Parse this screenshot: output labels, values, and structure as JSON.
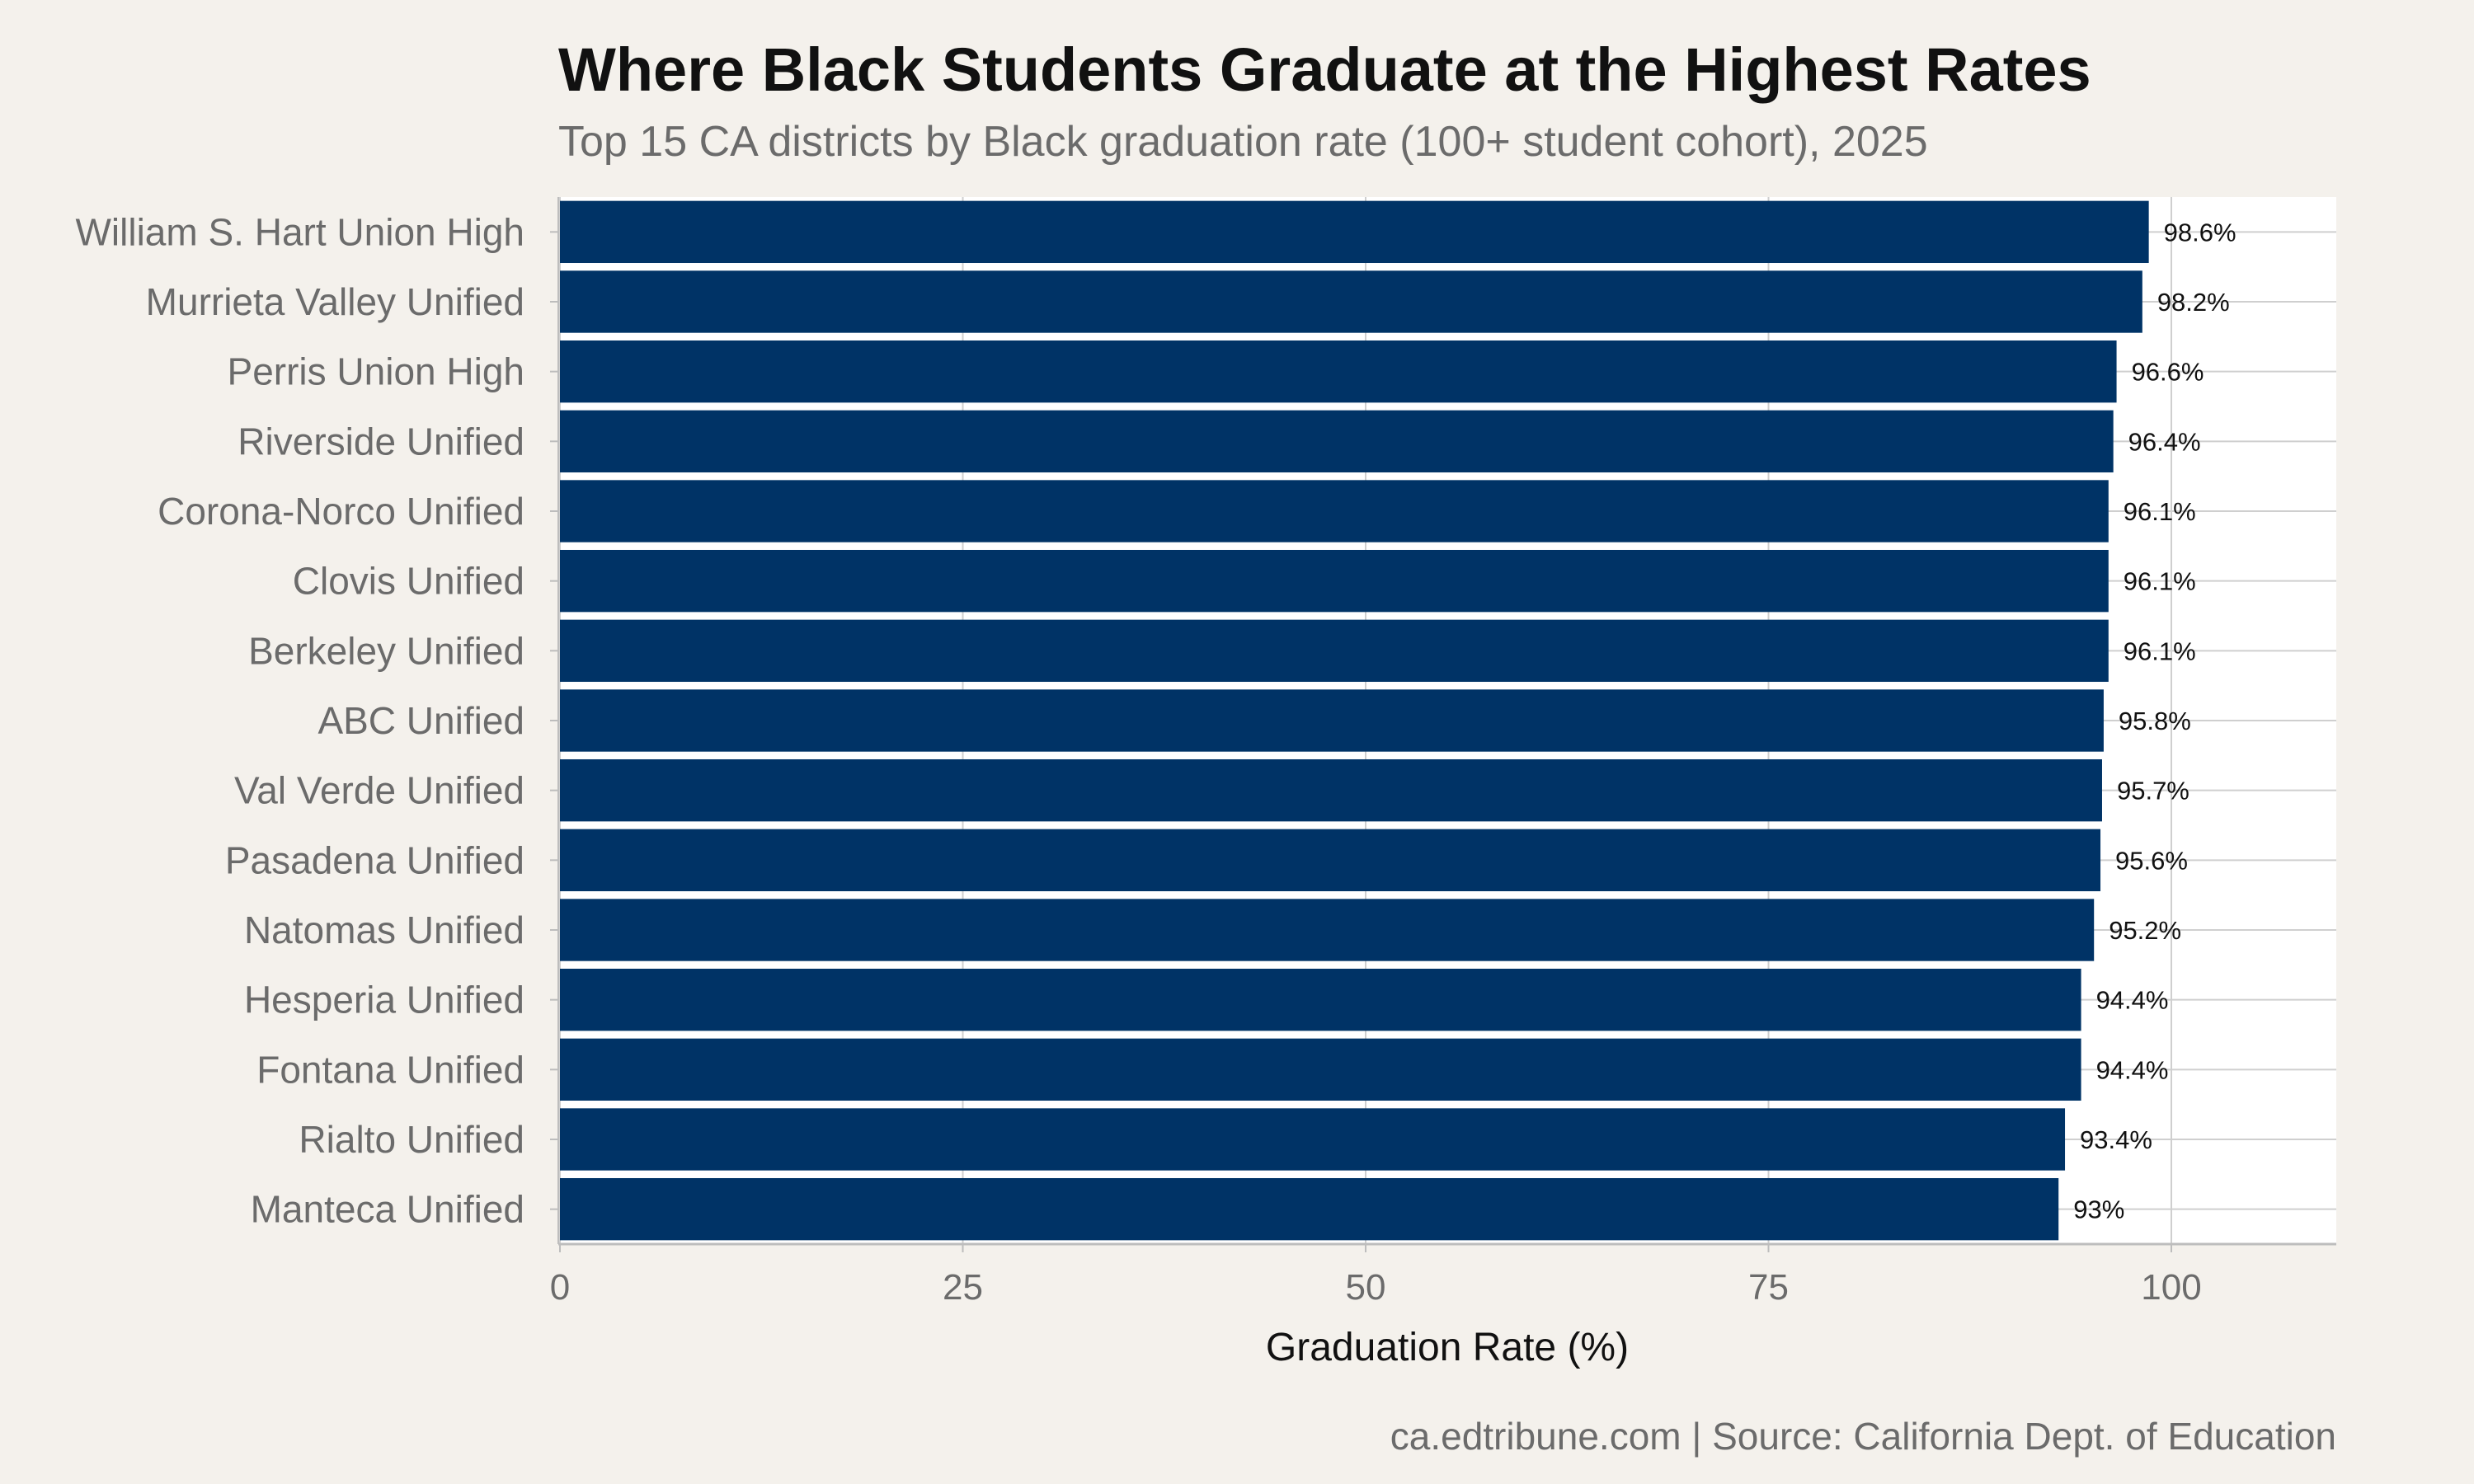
{
  "chart_data": {
    "type": "bar",
    "orientation": "horizontal",
    "title": "Where Black Students Graduate at the Highest Rates",
    "subtitle": "Top 15 CA districts by Black graduation rate (100+ student cohort), 2025",
    "xlabel": "Graduation Rate (%)",
    "ylabel": "",
    "caption": "ca.edtribune.com | Source: California Dept. of Education",
    "xlim": [
      0,
      110
    ],
    "xticks": [
      0,
      25,
      50,
      75,
      100
    ],
    "grid": true,
    "bar_color": "#003366",
    "categories": [
      "William S. Hart Union High",
      "Murrieta Valley Unified",
      "Perris Union High",
      "Riverside Unified",
      "Corona-Norco Unified",
      "Clovis Unified",
      "Berkeley Unified",
      "ABC Unified",
      "Val Verde Unified",
      "Pasadena Unified",
      "Natomas Unified",
      "Hesperia Unified",
      "Fontana Unified",
      "Rialto Unified",
      "Manteca Unified"
    ],
    "values": [
      98.6,
      98.2,
      96.6,
      96.4,
      96.1,
      96.1,
      96.1,
      95.8,
      95.7,
      95.6,
      95.2,
      94.4,
      94.4,
      93.4,
      93
    ],
    "data_labels": [
      "98.6%",
      "98.2%",
      "96.6%",
      "96.4%",
      "96.1%",
      "96.1%",
      "96.1%",
      "95.8%",
      "95.7%",
      "95.6%",
      "95.2%",
      "94.4%",
      "94.4%",
      "93.4%",
      "93%"
    ]
  }
}
